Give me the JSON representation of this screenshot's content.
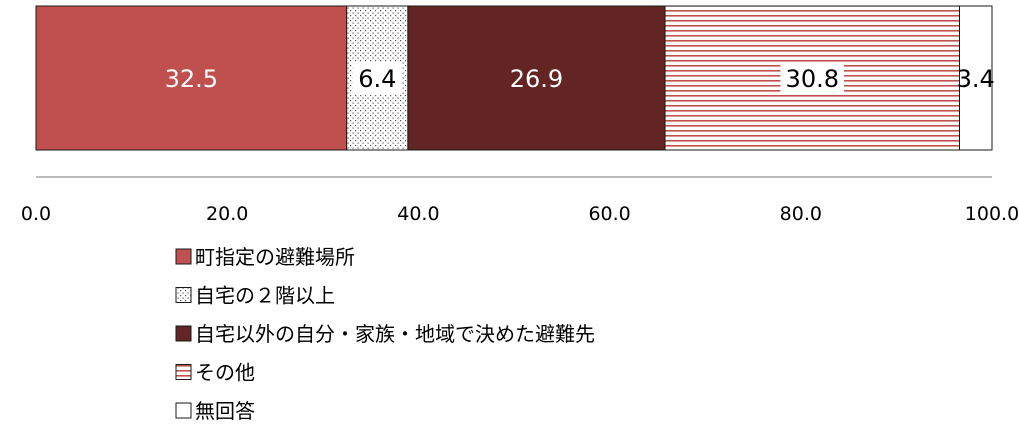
{
  "chart_data": {
    "type": "bar",
    "orientation": "horizontal",
    "stacked": true,
    "title": "",
    "xlabel": "",
    "ylabel": "",
    "xlim": [
      0,
      100
    ],
    "x_ticks": [
      "0.0",
      "20.0",
      "40.0",
      "60.0",
      "80.0",
      "100.0"
    ],
    "grid": false,
    "legend_position": "bottom",
    "series": [
      {
        "name": "町指定の避難場所",
        "values": [
          32.5
        ],
        "label": "32.5",
        "color": "#c0504d",
        "pattern": "solid"
      },
      {
        "name": "自宅の２階以上",
        "values": [
          6.4
        ],
        "label": "6.4",
        "color": "#555555",
        "pattern": "dots"
      },
      {
        "name": "自宅以外の自分・家族・地域で決めた避難先",
        "values": [
          26.9
        ],
        "label": "26.9",
        "color": "#632523",
        "pattern": "solid"
      },
      {
        "name": "その他",
        "values": [
          30.8
        ],
        "label": "30.8",
        "color": "#c0504d",
        "pattern": "horizontal-lines"
      },
      {
        "name": "無回答",
        "values": [
          3.4
        ],
        "label": "3.4",
        "color": "#ffffff",
        "pattern": "none"
      }
    ]
  }
}
